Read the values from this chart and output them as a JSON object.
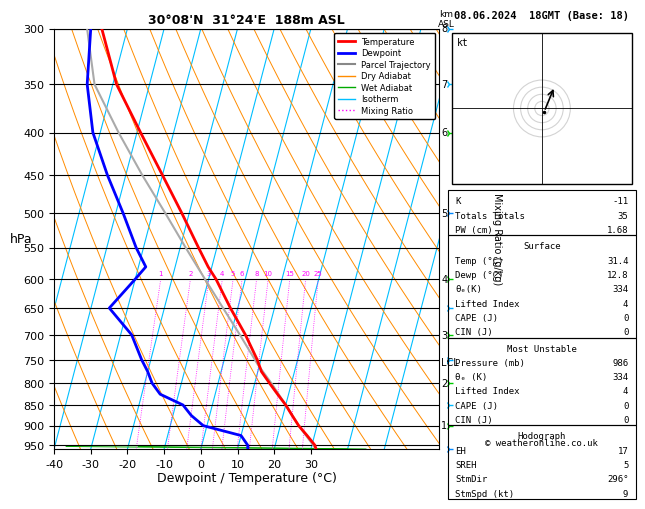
{
  "title_left": "30°08'N  31°24'E  188m ASL",
  "title_date": "08.06.2024  18GMT (Base: 18)",
  "xlabel": "Dewpoint / Temperature (°C)",
  "ylabel_left": "hPa",
  "isotherm_color": "#00bfff",
  "dry_adiabat_color": "#ff8c00",
  "wet_adiabat_color": "#00aa00",
  "mixing_ratio_color": "#ff00ff",
  "temperature_color": "#ff0000",
  "dewpoint_color": "#0000ff",
  "parcel_color": "#aaaaaa",
  "legend_items": [
    {
      "label": "Temperature",
      "color": "#ff0000",
      "lw": 2,
      "ls": "-"
    },
    {
      "label": "Dewpoint",
      "color": "#0000ff",
      "lw": 2,
      "ls": "-"
    },
    {
      "label": "Parcel Trajectory",
      "color": "#888888",
      "lw": 1.5,
      "ls": "-"
    },
    {
      "label": "Dry Adiabat",
      "color": "#ff8c00",
      "lw": 1,
      "ls": "-"
    },
    {
      "label": "Wet Adiabat",
      "color": "#00aa00",
      "lw": 1,
      "ls": "-"
    },
    {
      "label": "Isotherm",
      "color": "#00bfff",
      "lw": 1,
      "ls": "-"
    },
    {
      "label": "Mixing Ratio",
      "color": "#ff00ff",
      "lw": 1,
      "ls": ":"
    }
  ],
  "temp_profile": {
    "pressure": [
      960,
      950,
      925,
      900,
      875,
      850,
      825,
      800,
      775,
      750,
      700,
      650,
      600,
      580,
      550,
      500,
      450,
      400,
      350,
      300
    ],
    "temp": [
      31.4,
      30.8,
      28.0,
      25.0,
      22.5,
      20.0,
      17.0,
      14.0,
      11.0,
      9.0,
      4.0,
      -2.0,
      -8.0,
      -11.0,
      -15.0,
      -22.0,
      -30.0,
      -39.0,
      -49.0,
      -57.0
    ]
  },
  "dew_profile": {
    "pressure": [
      960,
      950,
      925,
      900,
      875,
      850,
      825,
      800,
      775,
      750,
      700,
      650,
      600,
      580,
      550,
      500,
      450,
      400,
      350,
      300
    ],
    "temp": [
      12.8,
      12.5,
      10.0,
      -1.0,
      -5.0,
      -8.0,
      -15.0,
      -18.0,
      -20.0,
      -22.5,
      -27.0,
      -35.0,
      -30.0,
      -28.0,
      -32.0,
      -38.0,
      -45.0,
      -52.0,
      -57.0,
      -60.0
    ]
  },
  "parcel_profile": {
    "pressure": [
      960,
      900,
      850,
      800,
      760,
      700,
      650,
      600,
      550,
      500,
      450,
      400,
      350,
      300
    ],
    "temp": [
      31.4,
      25.0,
      20.0,
      14.5,
      9.5,
      2.5,
      -4.0,
      -11.0,
      -18.5,
      -26.5,
      -35.5,
      -45.0,
      -55.0,
      -61.0
    ]
  },
  "mixing_ratio_lines": [
    1,
    2,
    3,
    4,
    5,
    6,
    8,
    10,
    15,
    20,
    25
  ],
  "pressure_levels": [
    300,
    350,
    400,
    450,
    500,
    550,
    600,
    650,
    700,
    750,
    800,
    850,
    900,
    950
  ],
  "km_pressures": [
    900,
    800,
    700,
    600,
    500,
    400,
    350,
    300
  ],
  "km_values": [
    1,
    2,
    3,
    4,
    5,
    6,
    7,
    8
  ],
  "lcl_pressure": 755,
  "info_table": {
    "K": "-11",
    "Totals Totals": "35",
    "PW (cm)": "1.68",
    "surface_temp": "31.4",
    "surface_dewp": "12.8",
    "surface_thetae": "334",
    "surface_li": "4",
    "surface_cape": "0",
    "surface_cin": "0",
    "mu_pressure": "986",
    "mu_thetae": "334",
    "mu_li": "4",
    "mu_cape": "0",
    "mu_cin": "0",
    "hodo_eh": "17",
    "hodo_sreh": "5",
    "hodo_stmdir": "296°",
    "hodo_stmspd": "9"
  },
  "copyright": "© weatheronline.co.uk"
}
